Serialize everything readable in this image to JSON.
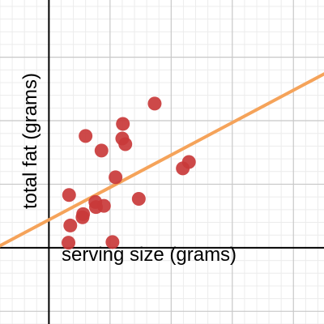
{
  "chart_data": {
    "type": "scatter",
    "xlabel": "serving size (grams)",
    "ylabel": "total fat (grams)",
    "xlim": [
      -8,
      45
    ],
    "ylim": [
      -12,
      39
    ],
    "grid": true,
    "minor_grid": true,
    "point_color": "#c9393a",
    "line_color": "#f5a35a",
    "series": [
      {
        "points": [
          [
            3.2,
            0.8
          ],
          [
            3.5,
            3.5
          ],
          [
            3.3,
            8.3
          ],
          [
            5.5,
            4.8
          ],
          [
            5.6,
            5.3
          ],
          [
            7.7,
            6.4
          ],
          [
            7.6,
            7.2
          ],
          [
            9.0,
            6.6
          ],
          [
            10.4,
            0.9
          ],
          [
            10.9,
            11.1
          ],
          [
            12.0,
            17.2
          ],
          [
            12.5,
            16.3
          ],
          [
            12.1,
            19.5
          ],
          [
            14.7,
            7.7
          ],
          [
            6.0,
            17.6
          ],
          [
            8.6,
            15.3
          ],
          [
            17.3,
            22.7
          ],
          [
            21.9,
            12.5
          ],
          [
            22.9,
            13.5
          ]
        ]
      }
    ],
    "trendline": {
      "slope": 0.51,
      "intercept": 4.4
    }
  }
}
